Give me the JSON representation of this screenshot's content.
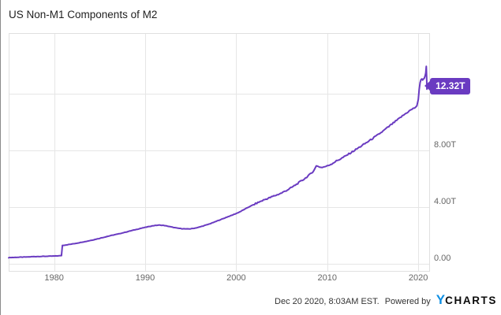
{
  "title": "US Non-M1 Components of M2",
  "chart_data": {
    "type": "line",
    "title": "US Non-M1 Components of M2",
    "xlabel": "",
    "ylabel": "",
    "xlim": [
      1975,
      2021.2
    ],
    "ylim_trillions": [
      -0.5,
      16.3
    ],
    "grid": true,
    "legend": "none",
    "last_value_label": "12.32T",
    "x_ticks": [
      {
        "value": 1980,
        "label": "1980"
      },
      {
        "value": 1990,
        "label": "1990"
      },
      {
        "value": 2000,
        "label": "2000"
      },
      {
        "value": 2010,
        "label": "2010"
      },
      {
        "value": 2020,
        "label": "2020"
      }
    ],
    "y_ticks": [
      {
        "value": 0,
        "label": "0.00"
      },
      {
        "value": 4,
        "label": "4.00T"
      },
      {
        "value": 8,
        "label": "8.00T"
      },
      {
        "value": 12,
        "label": ""
      }
    ],
    "series": [
      {
        "name": "US Non-M1 Components of M2",
        "unit": "trillions USD",
        "color": "#6A3BC1",
        "points": [
          [
            1975.0,
            0.44
          ],
          [
            1975.5,
            0.45
          ],
          [
            1976.0,
            0.46
          ],
          [
            1976.5,
            0.47
          ],
          [
            1977.0,
            0.48
          ],
          [
            1977.5,
            0.5
          ],
          [
            1978.0,
            0.51
          ],
          [
            1978.5,
            0.52
          ],
          [
            1979.0,
            0.53
          ],
          [
            1979.5,
            0.54
          ],
          [
            1980.0,
            0.55
          ],
          [
            1980.4,
            0.56
          ],
          [
            1980.8,
            0.58
          ],
          [
            1980.9,
            1.3
          ],
          [
            1981.3,
            1.33
          ],
          [
            1981.7,
            1.37
          ],
          [
            1982.0,
            1.4
          ],
          [
            1982.5,
            1.46
          ],
          [
            1983.0,
            1.52
          ],
          [
            1983.5,
            1.58
          ],
          [
            1984.0,
            1.65
          ],
          [
            1984.5,
            1.72
          ],
          [
            1985.0,
            1.8
          ],
          [
            1985.5,
            1.88
          ],
          [
            1986.0,
            1.96
          ],
          [
            1986.5,
            2.03
          ],
          [
            1987.0,
            2.1
          ],
          [
            1987.5,
            2.18
          ],
          [
            1988.0,
            2.26
          ],
          [
            1988.5,
            2.34
          ],
          [
            1989.0,
            2.42
          ],
          [
            1989.5,
            2.5
          ],
          [
            1990.0,
            2.57
          ],
          [
            1990.5,
            2.64
          ],
          [
            1991.0,
            2.7
          ],
          [
            1991.5,
            2.73
          ],
          [
            1992.0,
            2.71
          ],
          [
            1992.5,
            2.65
          ],
          [
            1993.0,
            2.58
          ],
          [
            1993.5,
            2.52
          ],
          [
            1994.0,
            2.48
          ],
          [
            1994.5,
            2.46
          ],
          [
            1995.0,
            2.47
          ],
          [
            1995.5,
            2.52
          ],
          [
            1996.0,
            2.6
          ],
          [
            1996.5,
            2.7
          ],
          [
            1997.0,
            2.8
          ],
          [
            1997.5,
            2.92
          ],
          [
            1998.0,
            3.05
          ],
          [
            1998.5,
            3.17
          ],
          [
            1999.0,
            3.3
          ],
          [
            1999.5,
            3.42
          ],
          [
            2000.0,
            3.55
          ],
          [
            2000.5,
            3.7
          ],
          [
            2001.0,
            3.88
          ],
          [
            2001.5,
            4.05
          ],
          [
            2002.0,
            4.2
          ],
          [
            2002.5,
            4.35
          ],
          [
            2003.0,
            4.5
          ],
          [
            2003.5,
            4.62
          ],
          [
            2004.0,
            4.75
          ],
          [
            2004.5,
            4.87
          ],
          [
            2005.0,
            5.0
          ],
          [
            2005.5,
            5.17
          ],
          [
            2006.0,
            5.35
          ],
          [
            2006.5,
            5.56
          ],
          [
            2007.0,
            5.78
          ],
          [
            2007.5,
            6.0
          ],
          [
            2008.0,
            6.25
          ],
          [
            2008.5,
            6.55
          ],
          [
            2008.8,
            6.9
          ],
          [
            2009.0,
            6.88
          ],
          [
            2009.3,
            6.8
          ],
          [
            2009.6,
            6.83
          ],
          [
            2010.0,
            6.9
          ],
          [
            2010.5,
            7.06
          ],
          [
            2011.0,
            7.25
          ],
          [
            2011.5,
            7.42
          ],
          [
            2012.0,
            7.6
          ],
          [
            2012.5,
            7.8
          ],
          [
            2013.0,
            8.0
          ],
          [
            2013.5,
            8.21
          ],
          [
            2014.0,
            8.42
          ],
          [
            2014.5,
            8.63
          ],
          [
            2015.0,
            8.85
          ],
          [
            2015.5,
            9.07
          ],
          [
            2016.0,
            9.3
          ],
          [
            2016.5,
            9.55
          ],
          [
            2017.0,
            9.8
          ],
          [
            2017.5,
            10.05
          ],
          [
            2018.0,
            10.3
          ],
          [
            2018.5,
            10.55
          ],
          [
            2019.0,
            10.78
          ],
          [
            2019.3,
            10.9
          ],
          [
            2019.6,
            11.0
          ],
          [
            2019.85,
            11.15
          ],
          [
            2020.0,
            11.6
          ],
          [
            2020.1,
            12.3
          ],
          [
            2020.2,
            12.8
          ],
          [
            2020.3,
            13.0
          ],
          [
            2020.4,
            13.05
          ],
          [
            2020.47,
            12.95
          ],
          [
            2020.55,
            13.02
          ],
          [
            2020.65,
            13.1
          ],
          [
            2020.75,
            13.25
          ],
          [
            2020.82,
            13.45
          ],
          [
            2020.88,
            13.93
          ],
          [
            2020.92,
            13.1
          ],
          [
            2020.95,
            12.32
          ]
        ]
      }
    ]
  },
  "footer": {
    "timestamp": "Dec 20 2020, 8:03AM EST.",
    "powered_by_label": "Powered by",
    "logo_y": "Y",
    "logo_rest": "CHARTS"
  },
  "colors": {
    "line": "#6A3BC1",
    "badge_bg": "#6A3BC1",
    "badge_text": "#FFFFFF",
    "grid": "#E6E6E6",
    "plot_border": "#E0E0E0",
    "axis_label": "#666666",
    "title": "#1F1F1F",
    "logo_blue": "#0D8FE4",
    "logo_black": "#0B0B0B"
  }
}
